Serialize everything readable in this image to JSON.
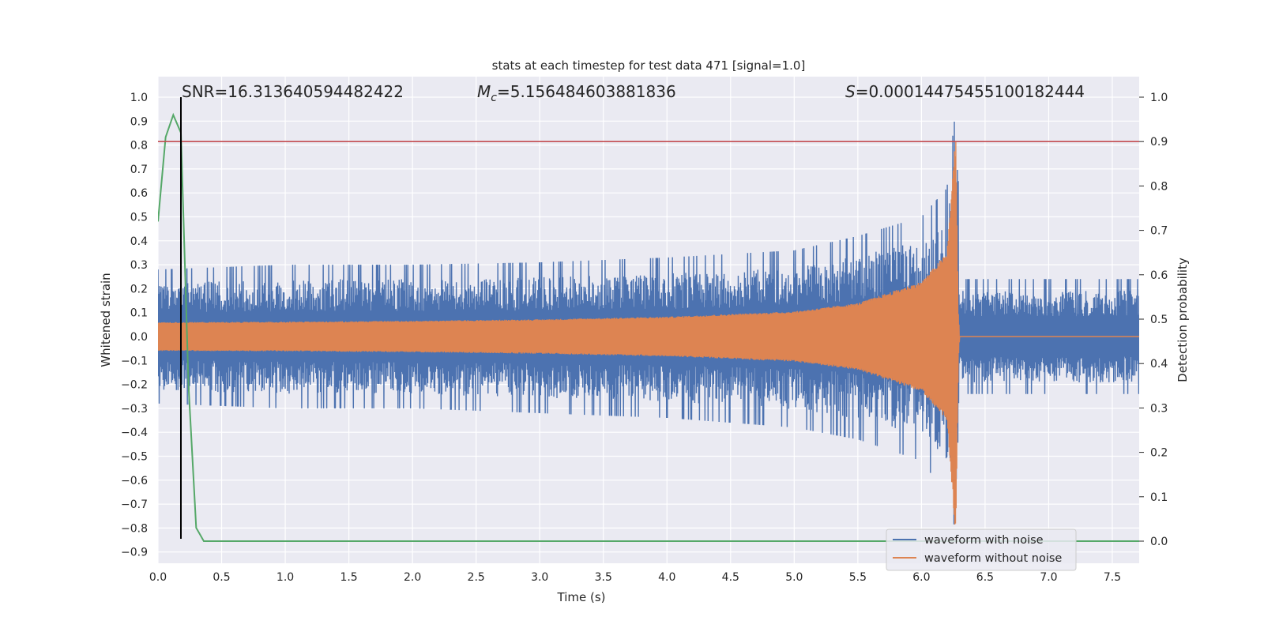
{
  "chart_data": {
    "type": "line",
    "title": "stats at each timestep for test data 471 [signal=1.0]",
    "xlabel": "Time (s)",
    "ylabel": "Whitened strain",
    "ylabel_right": "Detection probability",
    "xlim": [
      0.0,
      8.0
    ],
    "ylim": [
      -0.93,
      1.0
    ],
    "ylim_right": [
      -0.048,
      1.0
    ],
    "xticks": [
      "0.0",
      "0.5",
      "1.0",
      "1.5",
      "2.0",
      "2.5",
      "3.0",
      "3.5",
      "4.0",
      "4.5",
      "5.0",
      "5.5",
      "6.0",
      "6.5",
      "7.0",
      "7.5"
    ],
    "yticks": [
      "1.0",
      "0.9",
      "0.8",
      "0.7",
      "0.6",
      "0.5",
      "0.4",
      "0.3",
      "0.2",
      "0.1",
      "0.0",
      "−0.1",
      "−0.2",
      "−0.3",
      "−0.4",
      "−0.5",
      "−0.6",
      "−0.7",
      "−0.8",
      "−0.9"
    ],
    "yticks_right": [
      "1.0",
      "0.9",
      "0.8",
      "0.7",
      "0.6",
      "0.5",
      "0.4",
      "0.3",
      "0.2",
      "0.1",
      "0.0"
    ],
    "grid": true,
    "legend_position": "lower right",
    "annotations": {
      "snr": "SNR=16.313640594482422",
      "mc_symbol": "M",
      "mc_sub": "c",
      "mc_value": "=5.156484603881836",
      "s_symbol": "S",
      "s_value": "=0.00014475455100182444"
    },
    "series": [
      {
        "name": "waveform with noise",
        "color": "#4c72b0",
        "axis": "left",
        "description_points": {
          "x": [
            0.0,
            1.0,
            2.0,
            3.0,
            4.0,
            5.0,
            5.5,
            6.0,
            6.2,
            6.28,
            6.3,
            7.0,
            8.0
          ],
          "upper": [
            0.28,
            0.3,
            0.3,
            0.31,
            0.33,
            0.36,
            0.42,
            0.5,
            0.62,
            1.0,
            0.24,
            0.24,
            0.24
          ],
          "lower": [
            -0.28,
            -0.3,
            -0.3,
            -0.32,
            -0.34,
            -0.38,
            -0.43,
            -0.52,
            -0.66,
            -0.84,
            -0.24,
            -0.24,
            -0.24
          ]
        }
      },
      {
        "name": "waveform without noise",
        "color": "#dd8452",
        "axis": "left",
        "envelope": {
          "x": [
            0.0,
            1.0,
            2.0,
            3.0,
            4.0,
            5.0,
            5.5,
            6.0,
            6.2,
            6.27,
            6.29,
            6.3,
            8.0
          ],
          "amplitude": [
            0.06,
            0.062,
            0.066,
            0.072,
            0.083,
            0.105,
            0.14,
            0.23,
            0.35,
            0.85,
            0.1,
            0.0,
            0.0
          ]
        }
      },
      {
        "name": "detection probability",
        "color": "#55a868",
        "axis": "right",
        "x": [
          0.0,
          0.06,
          0.12,
          0.18,
          0.24,
          0.3,
          0.36,
          0.42,
          8.0
        ],
        "y": [
          0.72,
          0.91,
          0.96,
          0.92,
          0.35,
          0.03,
          0.0,
          0.0,
          0.0
        ]
      }
    ],
    "reference_lines": [
      {
        "type": "hline",
        "axis": "right",
        "y": 0.9,
        "color": "#c44e52"
      },
      {
        "type": "vline",
        "x": 0.18,
        "y_range": [
          -0.845,
          1.0
        ],
        "color": "#000000"
      }
    ]
  }
}
